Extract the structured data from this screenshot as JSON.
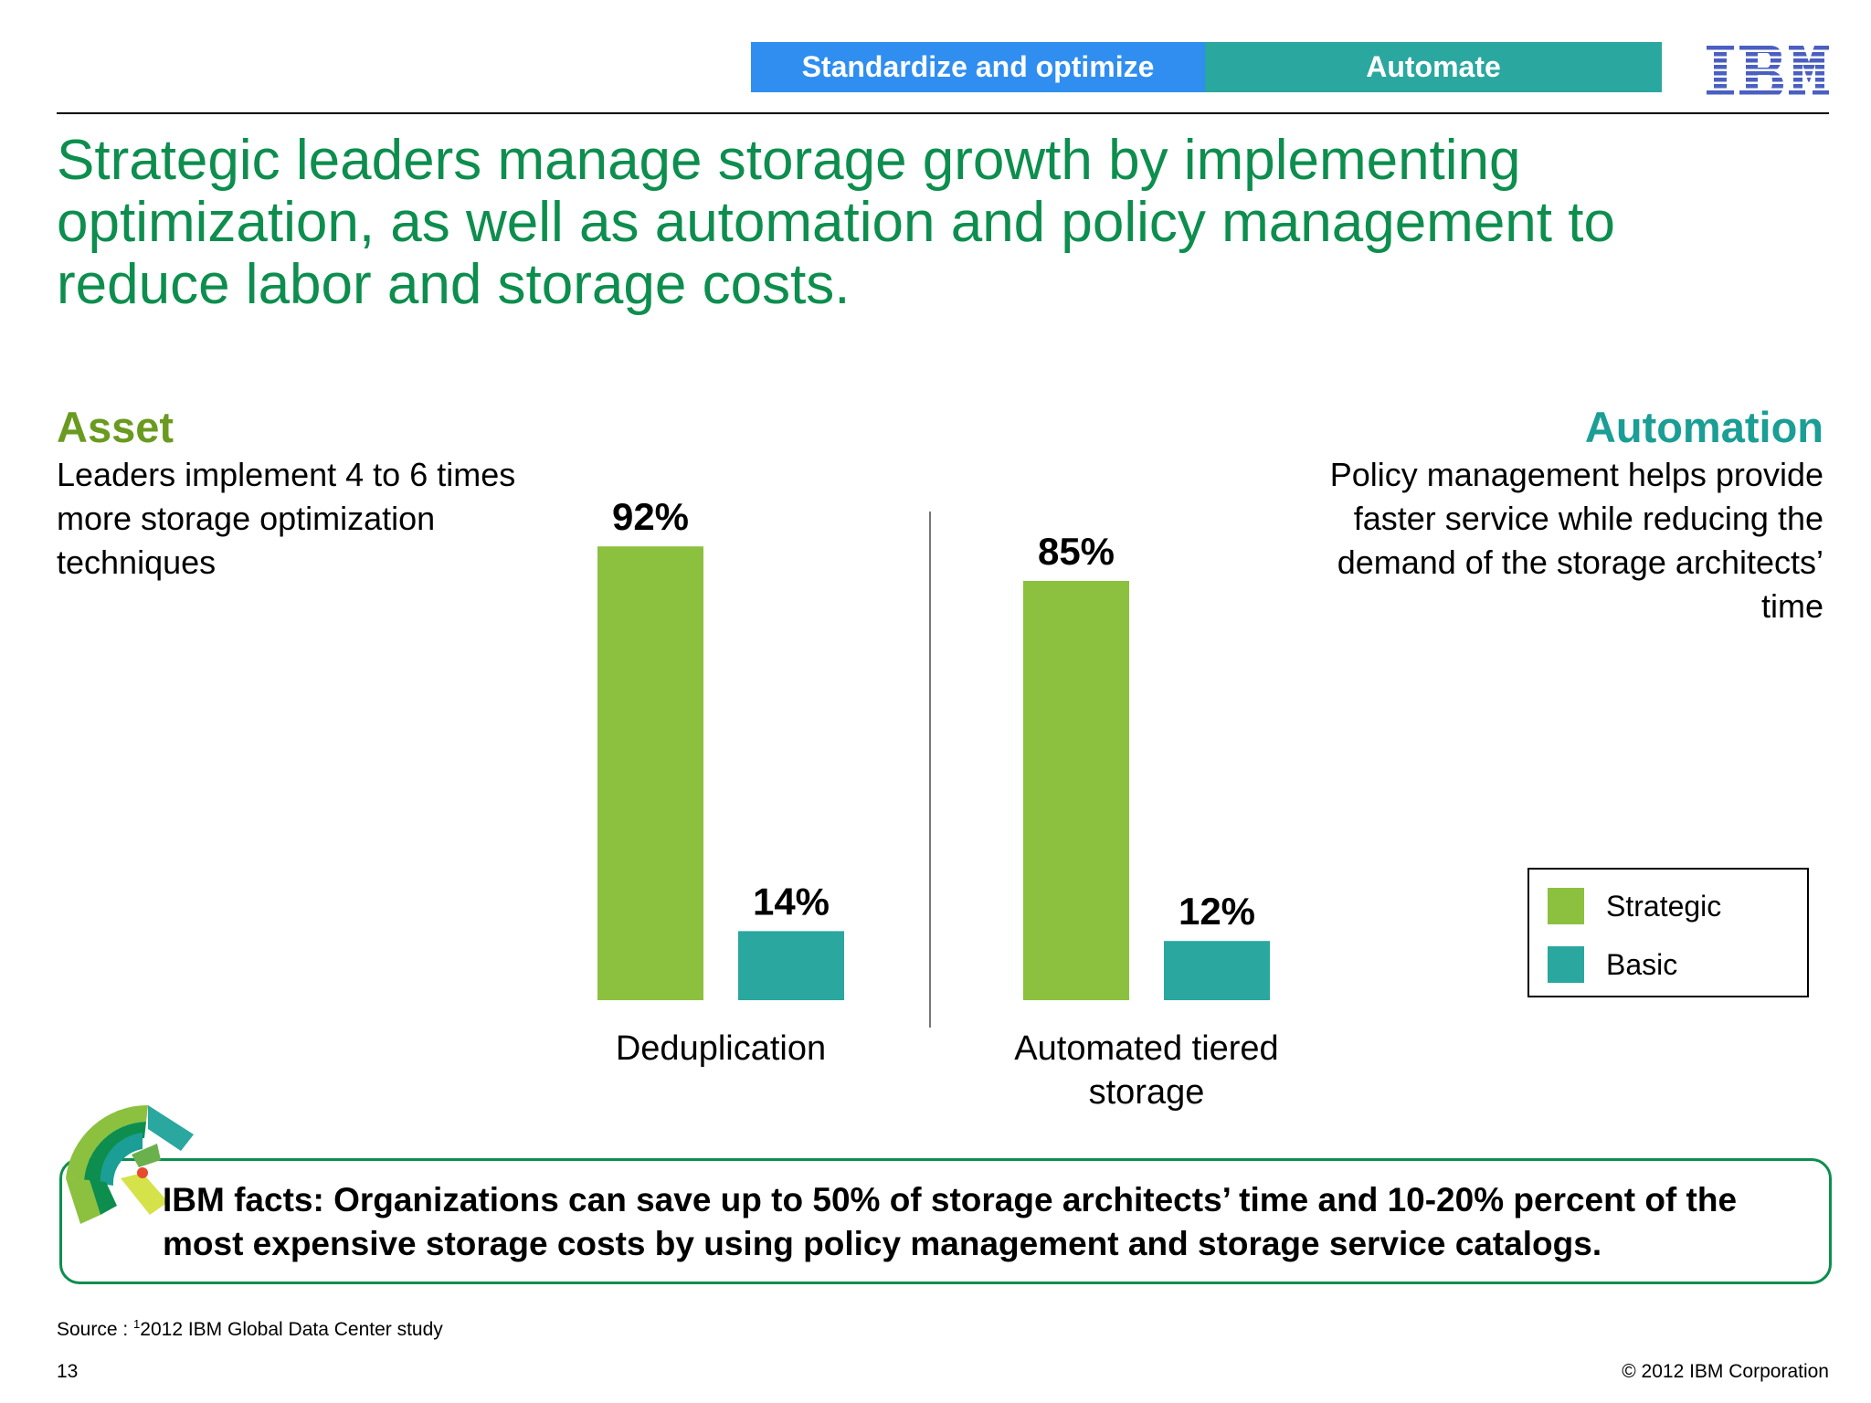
{
  "header": {
    "tabs": [
      {
        "label": "Standardize and optimize",
        "color": "#2f8ef0"
      },
      {
        "label": "Automate",
        "color": "#2aa79f"
      }
    ],
    "logo_text": "IBM"
  },
  "title": "Strategic leaders manage storage growth by implementing optimization, as well as automation and policy management to reduce labor and storage costs.",
  "asset": {
    "heading": "Asset",
    "heading_color": "#6a9a1f",
    "body": "Leaders implement 4 to 6 times more storage optimization techniques"
  },
  "automation": {
    "heading": "Automation",
    "heading_color": "#1a9e95",
    "body": "Policy management helps provide faster service while reducing the demand of the storage architects’ time"
  },
  "chart_data": {
    "type": "bar",
    "categories": [
      "Deduplication",
      "Automated tiered storage"
    ],
    "series": [
      {
        "name": "Strategic",
        "values": [
          92,
          85
        ],
        "color": "#8bc13e"
      },
      {
        "name": "Basic",
        "values": [
          14,
          12
        ],
        "color": "#2aa79f"
      }
    ],
    "value_labels": [
      [
        "92%",
        "85%"
      ],
      [
        "14%",
        "12%"
      ]
    ],
    "ylim": [
      0,
      100
    ],
    "grid": false,
    "legend_position": "right"
  },
  "legend": {
    "items": [
      {
        "label": "Strategic",
        "color": "#8bc13e"
      },
      {
        "label": "Basic",
        "color": "#2aa79f"
      }
    ]
  },
  "facts": {
    "text": "IBM facts: Organizations can save up to 50% of storage architects’ time and 10-20% percent of the most expensive storage costs by using policy management and storage service catalogs."
  },
  "footer": {
    "source_prefix": "Source : ",
    "source_sup": "1",
    "source_text": "2012 IBM Global Data Center study",
    "page_number": "13",
    "copyright": "© 2012 IBM Corporation"
  }
}
